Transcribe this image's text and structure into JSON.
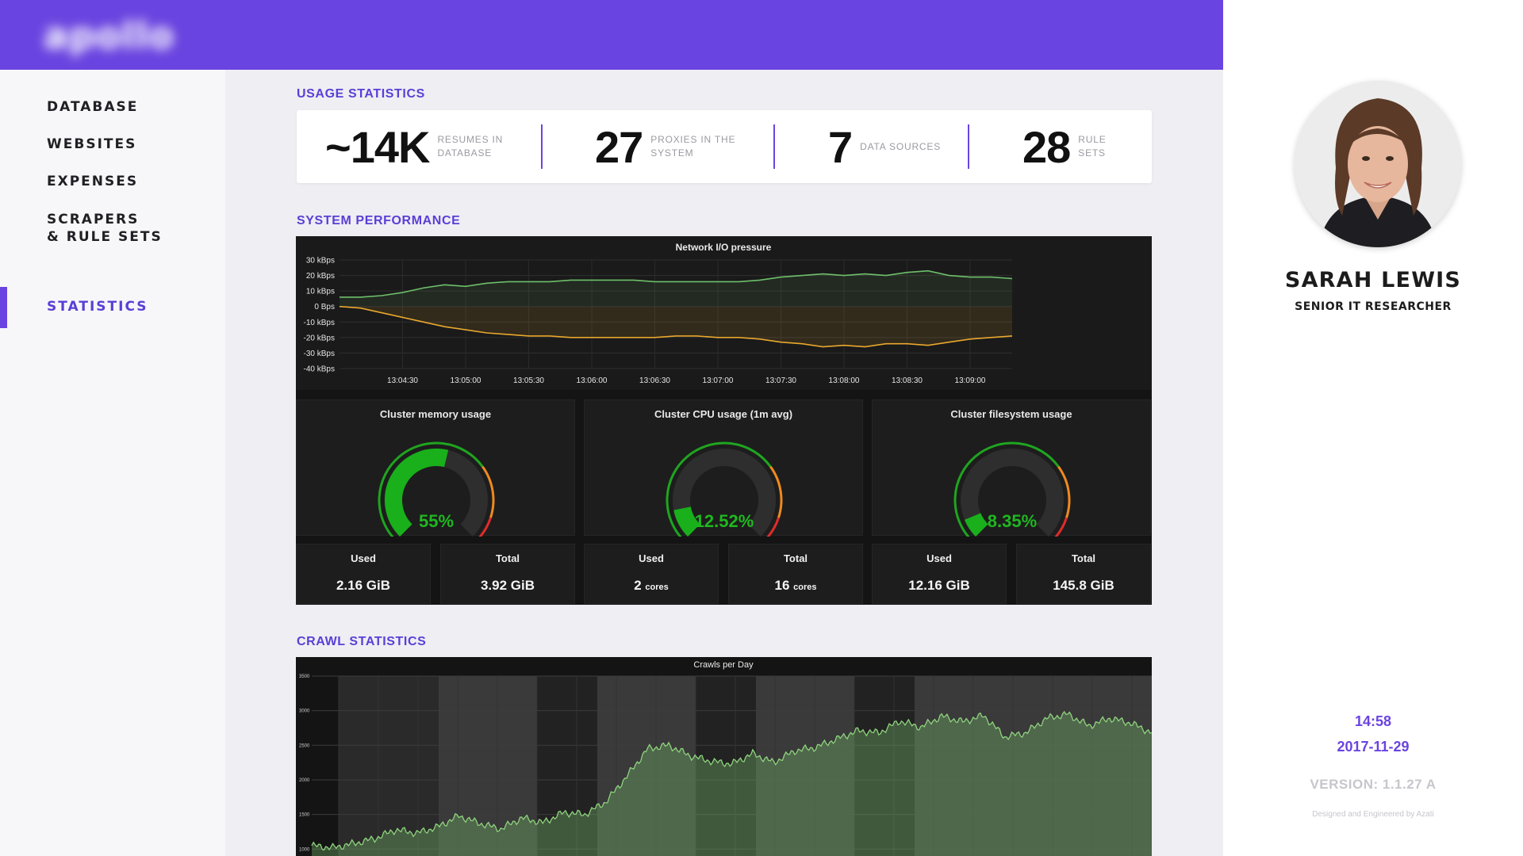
{
  "app": {
    "logo_text": "apollo",
    "accent_color": "#6a44e0"
  },
  "sidebar": {
    "items": [
      {
        "label": "DATABASE",
        "active": false
      },
      {
        "label": "WEBSITES",
        "active": false
      },
      {
        "label": "EXPENSES",
        "active": false
      },
      {
        "label": "SCRAPERS\n& RULE SETS",
        "active": false
      },
      {
        "label": "STATISTICS",
        "active": true
      }
    ]
  },
  "sections": {
    "usage": "USAGE STATISTICS",
    "performance": "SYSTEM PERFORMANCE",
    "crawl": "CRAWL STATISTICS"
  },
  "usage_stats": [
    {
      "value": "~14K",
      "label": "RESUMES IN DATABASE"
    },
    {
      "value": "27",
      "label": "PROXIES IN THE SYSTEM"
    },
    {
      "value": "7",
      "label": "DATA SOURCES"
    },
    {
      "value": "28",
      "label": "RULE SETS"
    }
  ],
  "gauges": [
    {
      "title": "Cluster memory usage",
      "value_text": "55%",
      "fraction": 0.55,
      "used_label": "Used",
      "used_value": "2.16 GiB",
      "used_unit": "",
      "total_label": "Total",
      "total_value": "3.92 GiB",
      "total_unit": ""
    },
    {
      "title": "Cluster CPU usage (1m avg)",
      "value_text": "12.52%",
      "fraction": 0.1252,
      "used_label": "Used",
      "used_value": "2",
      "used_unit": "cores",
      "total_label": "Total",
      "total_value": "16",
      "total_unit": "cores"
    },
    {
      "title": "Cluster filesystem usage",
      "value_text": "8.35%",
      "fraction": 0.0835,
      "used_label": "Used",
      "used_value": "12.16 GiB",
      "used_unit": "",
      "total_label": "Total",
      "total_value": "145.8 GiB",
      "total_unit": ""
    }
  ],
  "colors": {
    "gauge_fill": "#19b01b",
    "gauge_text": "#1fb71f",
    "gauge_bg": "#2e2e2e",
    "gauge_track_green": "#1fa51f",
    "gauge_track_orange": "#ef8a1f",
    "gauge_track_red": "#e02b2b",
    "series_in": "#6ebf6a",
    "series_out": "#e9a82d",
    "crawl_line": "#8fd47e"
  },
  "chart_data": [
    {
      "type": "line",
      "title": "Network I/O pressure",
      "y_tick_labels": [
        "30 kBps",
        "20 kBps",
        "10 kBps",
        "0 Bps",
        "-10 kBps",
        "-20 kBps",
        "-30 kBps",
        "-40 kBps"
      ],
      "ylim": [
        -40,
        30
      ],
      "x_tick_labels": [
        "13:04:30",
        "13:05:00",
        "13:05:30",
        "13:06:00",
        "13:06:30",
        "13:07:00",
        "13:07:30",
        "13:08:00",
        "13:08:30",
        "13:09:00"
      ],
      "x": [
        "13:04:00",
        "13:04:10",
        "13:04:20",
        "13:04:30",
        "13:04:40",
        "13:04:50",
        "13:05:00",
        "13:05:10",
        "13:05:20",
        "13:05:30",
        "13:05:40",
        "13:05:50",
        "13:06:00",
        "13:06:10",
        "13:06:20",
        "13:06:30",
        "13:06:40",
        "13:06:50",
        "13:07:00",
        "13:07:10",
        "13:07:20",
        "13:07:30",
        "13:07:40",
        "13:07:50",
        "13:08:00",
        "13:08:10",
        "13:08:20",
        "13:08:30",
        "13:08:40",
        "13:08:50",
        "13:09:00",
        "13:09:10",
        "13:09:20"
      ],
      "series": [
        {
          "values": [
            6,
            6,
            7,
            9,
            12,
            14,
            13,
            15,
            16,
            16,
            16,
            17,
            17,
            17,
            17,
            16,
            16,
            16,
            16,
            16,
            17,
            19,
            20,
            21,
            20,
            21,
            20,
            22,
            23,
            20,
            19,
            19,
            18
          ]
        },
        {
          "values": [
            0,
            -1,
            -4,
            -7,
            -10,
            -13,
            -15,
            -17,
            -18,
            -19,
            -19,
            -20,
            -20,
            -20,
            -20,
            -20,
            -19,
            -19,
            -20,
            -20,
            -21,
            -23,
            -24,
            -26,
            -25,
            -26,
            -24,
            -24,
            -25,
            -23,
            -21,
            -20,
            -19
          ]
        }
      ],
      "grid": true
    },
    {
      "type": "area",
      "title": "Crawls per Day",
      "y_tick_labels": [
        "3500",
        "3000",
        "2500",
        "2000",
        "1500",
        "1000"
      ],
      "ylim": [
        900,
        3500
      ],
      "x": [
        0,
        20,
        40,
        60,
        80,
        100,
        120,
        140,
        160,
        180,
        200,
        220,
        240,
        260,
        280,
        300,
        320,
        340,
        360,
        380,
        400,
        420,
        440,
        460,
        480,
        500,
        520,
        540,
        560,
        580,
        600,
        620,
        640,
        660,
        680,
        700,
        720,
        740,
        760,
        780,
        800
      ],
      "values": [
        1050,
        1020,
        1080,
        1150,
        1280,
        1230,
        1320,
        1480,
        1370,
        1290,
        1450,
        1380,
        1530,
        1500,
        1680,
        2050,
        2450,
        2500,
        2350,
        2270,
        2230,
        2380,
        2250,
        2420,
        2470,
        2590,
        2710,
        2680,
        2850,
        2760,
        2920,
        2840,
        2930,
        2620,
        2680,
        2890,
        2950,
        2780,
        2890,
        2820,
        2680
      ],
      "grid": true
    }
  ],
  "profile": {
    "name": "SARAH LEWIS",
    "role": "SENIOR IT RESEARCHER",
    "time": "14:58",
    "date": "2017-11-29",
    "version": "VERSION: 1.1.27 A",
    "credit": "Designed and Engineered by Azati"
  }
}
